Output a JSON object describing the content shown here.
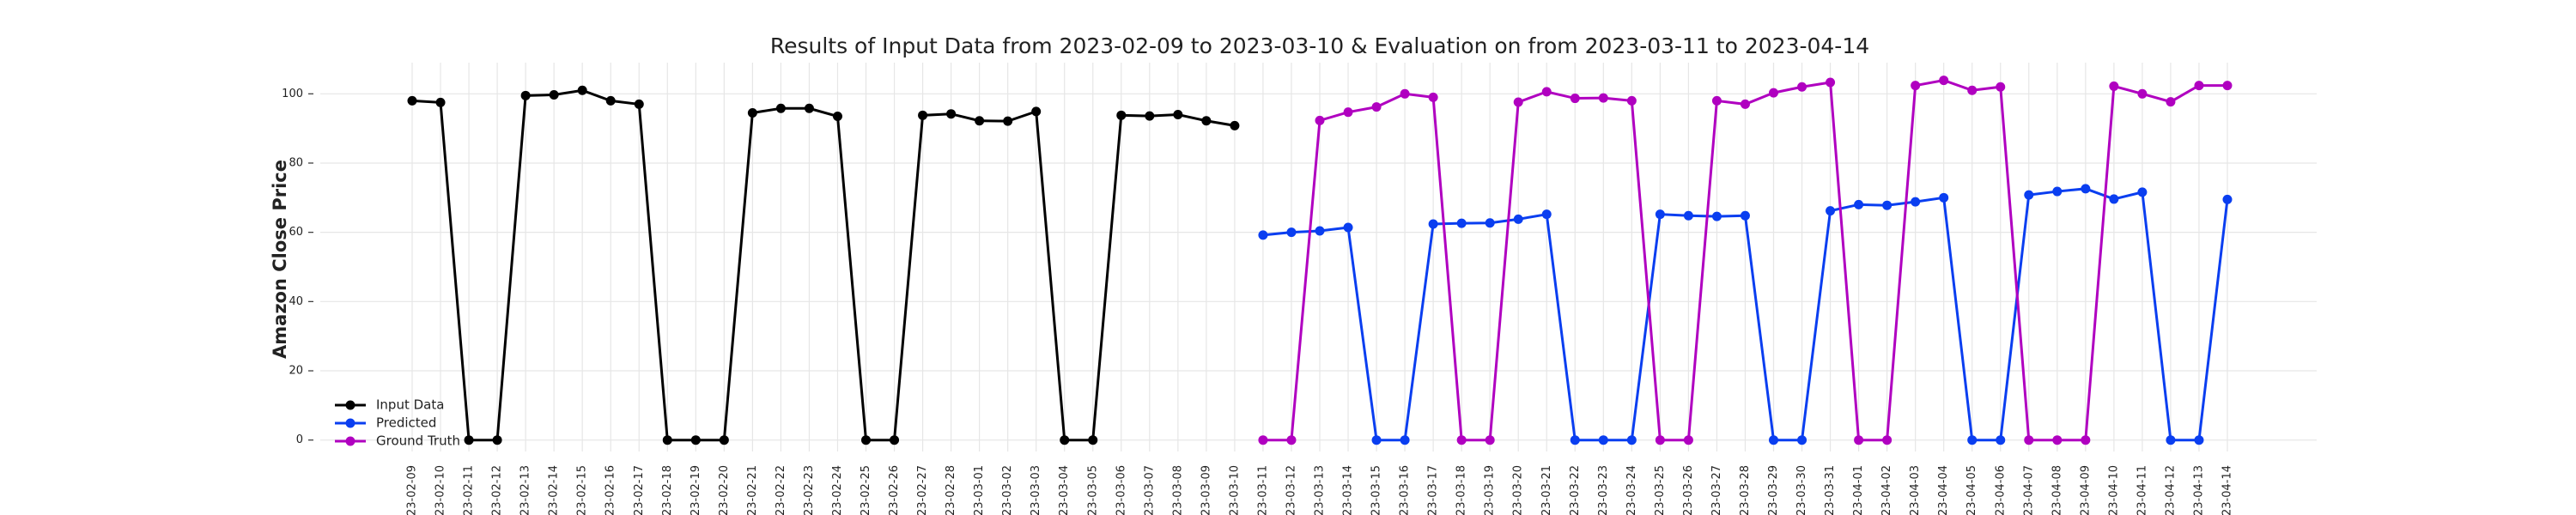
{
  "chart_data": {
    "type": "line",
    "title": "Results of Input Data from 2023-02-09 to 2023-03-10 & Evaluation on from 2023-03-11 to 2023-04-14",
    "y_label": "Amazon Close Price",
    "categories": [
      "2023-02-09",
      "2023-02-10",
      "2023-02-11",
      "2023-02-12",
      "2023-02-13",
      "2023-02-14",
      "2023-02-15",
      "2023-02-16",
      "2023-02-17",
      "2023-02-18",
      "2023-02-19",
      "2023-02-20",
      "2023-02-21",
      "2023-02-22",
      "2023-02-23",
      "2023-02-24",
      "2023-02-25",
      "2023-02-26",
      "2023-02-27",
      "2023-02-28",
      "2023-03-01",
      "2023-03-02",
      "2023-03-03",
      "2023-03-04",
      "2023-03-05",
      "2023-03-06",
      "2023-03-07",
      "2023-03-08",
      "2023-03-09",
      "2023-03-10",
      "2023-03-11",
      "2023-03-12",
      "2023-03-13",
      "2023-03-14",
      "2023-03-15",
      "2023-03-16",
      "2023-03-17",
      "2023-03-18",
      "2023-03-19",
      "2023-03-20",
      "2023-03-21",
      "2023-03-22",
      "2023-03-23",
      "2023-03-24",
      "2023-03-25",
      "2023-03-26",
      "2023-03-27",
      "2023-03-28",
      "2023-03-29",
      "2023-03-30",
      "2023-03-31",
      "2023-04-01",
      "2023-04-02",
      "2023-04-03",
      "2023-04-04",
      "2023-04-05",
      "2023-04-06",
      "2023-04-07",
      "2023-04-08",
      "2023-04-09",
      "2023-04-10",
      "2023-04-11",
      "2023-04-12",
      "2023-04-13",
      "2023-04-14"
    ],
    "series": [
      {
        "name": "Input Data",
        "color": "#000000",
        "values": [
          98,
          97.5,
          0,
          0,
          99.5,
          99.7,
          101,
          98,
          97,
          0,
          0,
          0,
          94.5,
          95.8,
          95.8,
          93.5,
          0,
          0,
          93.8,
          94.2,
          92.2,
          92.1,
          94.9,
          0,
          0,
          93.8,
          93.6,
          94,
          92.2,
          90.8,
          null,
          null,
          null,
          null,
          null,
          null,
          null,
          null,
          null,
          null,
          null,
          null,
          null,
          null,
          null,
          null,
          null,
          null,
          null,
          null,
          null,
          null,
          null,
          null,
          null,
          null,
          null,
          null,
          null,
          null,
          null,
          null,
          null,
          null,
          null
        ]
      },
      {
        "name": "Predicted",
        "color": "#0a3ef0",
        "values": [
          null,
          null,
          null,
          null,
          null,
          null,
          null,
          null,
          null,
          null,
          null,
          null,
          null,
          null,
          null,
          null,
          null,
          null,
          null,
          null,
          null,
          null,
          null,
          null,
          null,
          null,
          null,
          null,
          null,
          null,
          59.2,
          60,
          60.4,
          61.4,
          0,
          0,
          62.4,
          62.6,
          62.7,
          63.8,
          65.2,
          0,
          0,
          0,
          65.2,
          64.8,
          64.6,
          64.8,
          0,
          0,
          66.2,
          68,
          67.8,
          68.8,
          70,
          0,
          0,
          70.8,
          71.8,
          72.6,
          69.6,
          71.6,
          0,
          0,
          69.5
        ]
      },
      {
        "name": "Ground Truth",
        "color": "#b000c0",
        "values": [
          null,
          null,
          null,
          null,
          null,
          null,
          null,
          null,
          null,
          null,
          null,
          null,
          null,
          null,
          null,
          null,
          null,
          null,
          null,
          null,
          null,
          null,
          null,
          null,
          null,
          null,
          null,
          null,
          null,
          null,
          0,
          0,
          92.3,
          94.7,
          96.2,
          100,
          99,
          0,
          0,
          97.6,
          100.6,
          98.7,
          98.8,
          98,
          0,
          0,
          98,
          97,
          100.3,
          102,
          103.3,
          0,
          0,
          102.4,
          103.9,
          101,
          102,
          0,
          0,
          0,
          102.2,
          100,
          97.7,
          102.4,
          102.4
        ]
      }
    ],
    "ylim": [
      -3.3,
      109
    ],
    "yticks": [
      0,
      20,
      40,
      60,
      80,
      100
    ],
    "grid": true,
    "legend": "lower left"
  }
}
